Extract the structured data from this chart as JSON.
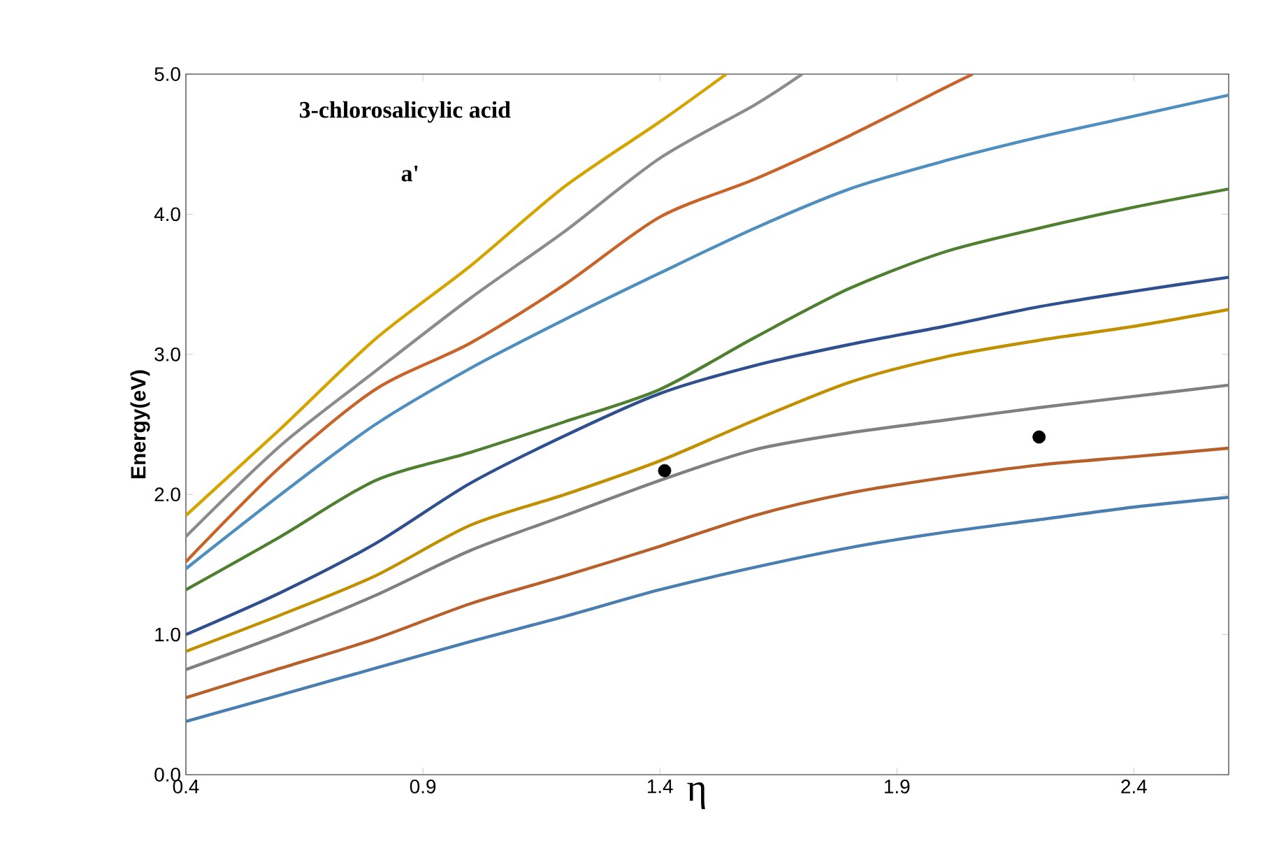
{
  "chart_data": {
    "type": "line",
    "title": "3-chlorosalicylic acid",
    "subtitle": "a'",
    "xlabel": "η",
    "ylabel": "Energy(eV)",
    "xlim": [
      0.4,
      2.6
    ],
    "ylim": [
      0,
      5
    ],
    "xticks": [
      0.4,
      0.9,
      1.4,
      1.9,
      2.4
    ],
    "yticks": [
      {
        "value": 0,
        "label": "0.0"
      },
      {
        "value": 1,
        "label": "1.0"
      },
      {
        "value": 2,
        "label": "2.0"
      },
      {
        "value": 3,
        "label": "3.0"
      },
      {
        "value": 4,
        "label": "4.0"
      },
      {
        "value": 5,
        "label": "5.0"
      }
    ],
    "grid": false,
    "line_style": "solid",
    "marker": "none",
    "x": [
      0.4,
      0.6,
      0.8,
      1.0,
      1.2,
      1.4,
      1.6,
      1.8,
      2.0,
      2.2,
      2.4,
      2.6
    ],
    "series": [
      {
        "color": "#4a7eb0",
        "values": [
          0.38,
          0.57,
          0.76,
          0.95,
          1.13,
          1.32,
          1.48,
          1.62,
          1.73,
          1.82,
          1.91,
          1.98
        ]
      },
      {
        "color": "#b8602c",
        "values": [
          0.55,
          0.76,
          0.97,
          1.22,
          1.42,
          1.63,
          1.85,
          2.01,
          2.12,
          2.21,
          2.27,
          2.33
        ]
      },
      {
        "color": "#808080",
        "values": [
          0.75,
          1.0,
          1.28,
          1.6,
          1.85,
          2.1,
          2.32,
          2.44,
          2.53,
          2.62,
          2.7,
          2.78
        ]
      },
      {
        "color": "#c09000",
        "values": [
          0.88,
          1.14,
          1.42,
          1.78,
          2.0,
          2.24,
          2.53,
          2.8,
          2.98,
          3.1,
          3.2,
          3.32
        ]
      },
      {
        "color": "#2f4f8f",
        "values": [
          1.0,
          1.3,
          1.65,
          2.08,
          2.42,
          2.72,
          2.92,
          3.07,
          3.2,
          3.34,
          3.45,
          3.55
        ]
      },
      {
        "color": "#4f7f30",
        "values": [
          1.32,
          1.7,
          2.1,
          2.3,
          2.52,
          2.75,
          3.12,
          3.47,
          3.73,
          3.9,
          4.05,
          4.18
        ]
      },
      {
        "color": "#4f8fc0",
        "values": [
          1.47,
          2.0,
          2.5,
          2.9,
          3.25,
          3.58,
          3.9,
          4.18,
          4.38,
          4.55,
          4.7,
          4.85
        ]
      },
      {
        "color": "#c8642a",
        "x": [
          0.4,
          0.6,
          0.8,
          1.0,
          1.2,
          1.4,
          1.6,
          1.8,
          2.0,
          2.06
        ],
        "values": [
          1.52,
          2.2,
          2.75,
          3.08,
          3.5,
          3.98,
          4.25,
          4.56,
          4.9,
          5.0
        ]
      },
      {
        "color": "#8c8c8c",
        "x": [
          0.4,
          0.6,
          0.8,
          1.0,
          1.2,
          1.4,
          1.6,
          1.7
        ],
        "values": [
          1.7,
          2.35,
          2.88,
          3.4,
          3.88,
          4.4,
          4.78,
          5.0
        ]
      },
      {
        "color": "#d4a400",
        "x": [
          0.4,
          0.6,
          0.8,
          1.0,
          1.2,
          1.4,
          1.54
        ],
        "values": [
          1.85,
          2.47,
          3.11,
          3.63,
          4.2,
          4.66,
          5.0
        ]
      },
      {
        "type": "scatter",
        "color": "#000000",
        "marker": "circle",
        "x": [
          1.41,
          2.2
        ],
        "values": [
          2.17,
          2.41
        ]
      }
    ]
  }
}
